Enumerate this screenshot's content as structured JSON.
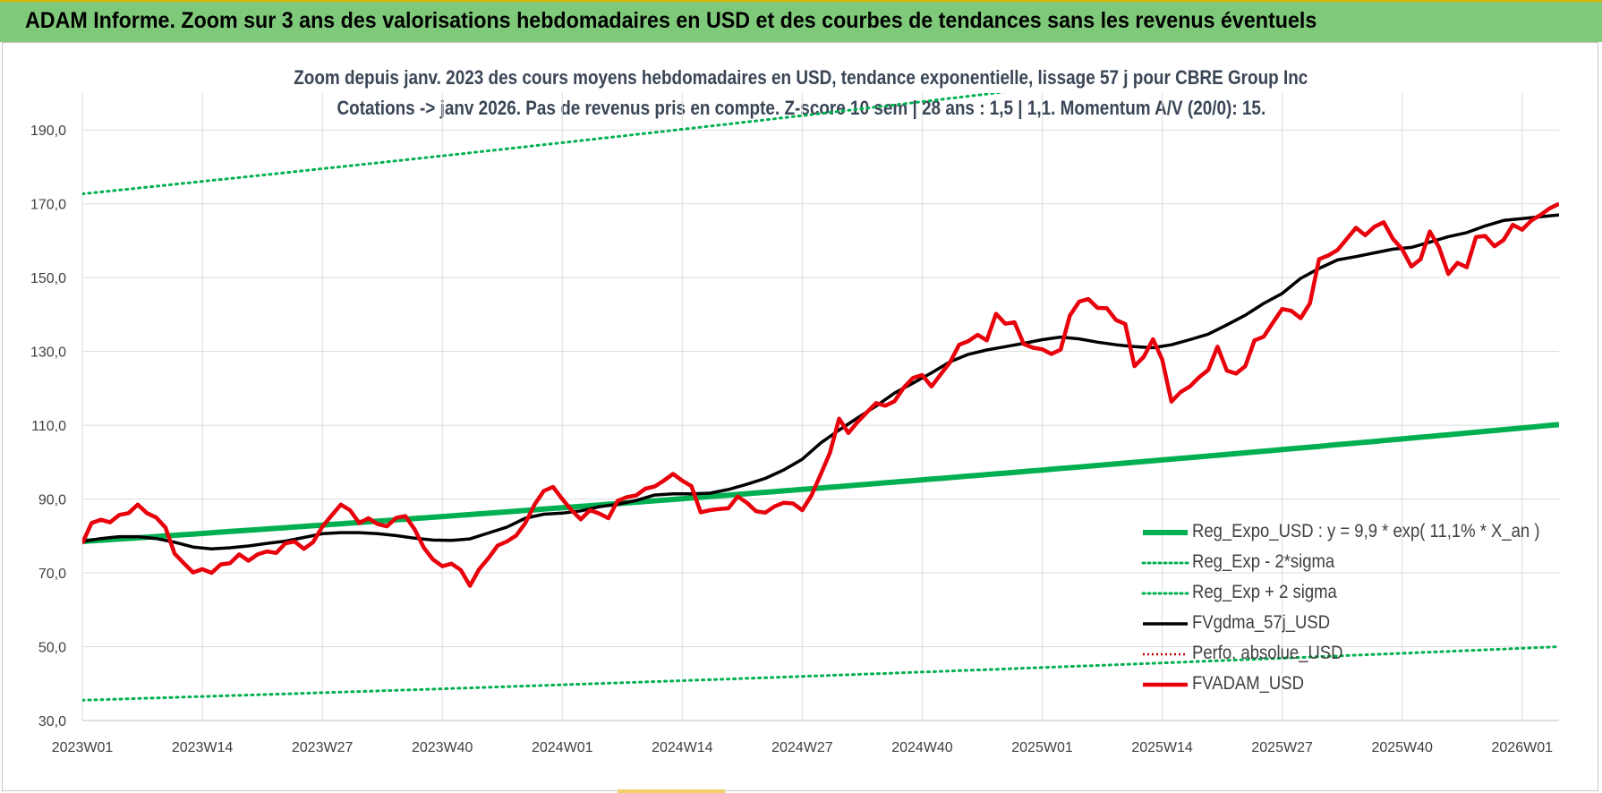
{
  "header": {
    "title": "ADAM Informe. Zoom sur 3 ans des valorisations hebdomadaires en USD et des courbes de tendances sans les revenus éventuels"
  },
  "chart_data": {
    "type": "line",
    "title": "Zoom depuis janv. 2023 des cours moyens hebdomadaires en USD, tendance exponentielle, lissage 57 j pour CBRE Group Inc",
    "subtitle": "Cotations -> janv 2026. Pas de revenus pris en compte. Z-score 10 sem | 28 ans : 1,5 | 1,1. Momentum A/V (20/0): 15.",
    "xlabel": "",
    "ylabel": "",
    "ylim": [
      30,
      200
    ],
    "yticks": [
      "30,0",
      "50,0",
      "70,0",
      "90,0",
      "110,0",
      "130,0",
      "150,0",
      "170,0",
      "190,0"
    ],
    "xlim": [
      0,
      160
    ],
    "xticks": [
      {
        "label": "2023W01",
        "x": 0
      },
      {
        "label": "2023W14",
        "x": 13
      },
      {
        "label": "2023W27",
        "x": 26
      },
      {
        "label": "2023W40",
        "x": 39
      },
      {
        "label": "2024W01",
        "x": 52
      },
      {
        "label": "2024W14",
        "x": 65
      },
      {
        "label": "2024W27",
        "x": 78
      },
      {
        "label": "2024W40",
        "x": 91
      },
      {
        "label": "2025W01",
        "x": 104
      },
      {
        "label": "2025W14",
        "x": 117
      },
      {
        "label": "2025W27",
        "x": 130
      },
      {
        "label": "2025W40",
        "x": 143
      },
      {
        "label": "2026W01",
        "x": 156
      }
    ],
    "grid": true,
    "legend_position": "bottom-right",
    "series": [
      {
        "name": "Reg_Expo_USD : y = 9,9 * exp( 11,1% *  X_an )",
        "style": "solid-thick",
        "color": "#00b050",
        "x": [
          0,
          160
        ],
        "values": [
          78.5,
          110.2
        ],
        "curve": "exponential"
      },
      {
        "name": "Reg_Exp - 2*sigma",
        "style": "dotted",
        "color": "#00b050",
        "x": [
          0,
          160
        ],
        "values": [
          35.5,
          50.0
        ],
        "curve": "exponential"
      },
      {
        "name": "Reg_Exp + 2 sigma",
        "style": "dotted",
        "color": "#00b050",
        "x": [
          0,
          160
        ],
        "values": [
          172.7,
          219.0
        ],
        "curve": "exponential"
      },
      {
        "name": "FVgdma_57j_USD",
        "style": "solid",
        "color": "#000000",
        "x": [
          0,
          2,
          4,
          6,
          8,
          10,
          12,
          14,
          16,
          18,
          20,
          22,
          24,
          26,
          28,
          30,
          32,
          34,
          36,
          38,
          40,
          42,
          44,
          46,
          48,
          50,
          52,
          54,
          56,
          58,
          60,
          62,
          64,
          66,
          68,
          70,
          72,
          74,
          76,
          78,
          80,
          82,
          84,
          86,
          88,
          90,
          92,
          94,
          96,
          98,
          100,
          102,
          104,
          106,
          108,
          110,
          112,
          114,
          116,
          118,
          120,
          122,
          124,
          126,
          128,
          130,
          132,
          134,
          136,
          138,
          140,
          142,
          144,
          146,
          148,
          150,
          152,
          154,
          156,
          158,
          160
        ],
        "values": [
          78.5,
          79.3,
          79.8,
          79.8,
          79.3,
          78.3,
          77.0,
          76.5,
          76.8,
          77.3,
          78.0,
          78.6,
          79.6,
          80.6,
          80.9,
          80.9,
          80.6,
          80.1,
          79.4,
          78.9,
          78.8,
          79.2,
          80.8,
          82.4,
          84.8,
          85.9,
          86.2,
          86.8,
          87.9,
          88.6,
          89.6,
          91.1,
          91.4,
          91.4,
          91.6,
          92.6,
          94.0,
          95.6,
          97.9,
          100.8,
          105.2,
          108.7,
          112.0,
          115.2,
          118.7,
          121.4,
          124.2,
          127.2,
          129.2,
          130.4,
          131.3,
          132.2,
          133.2,
          133.9,
          133.4,
          132.5,
          131.8,
          131.3,
          131.0,
          131.8,
          133.2,
          134.7,
          137.2,
          139.8,
          143.0,
          145.7,
          149.8,
          152.5,
          154.8,
          155.7,
          156.7,
          157.7,
          158.2,
          159.6,
          161.1,
          162.2,
          164.0,
          165.5,
          166.0,
          166.5,
          167.0
        ]
      },
      {
        "name": "Perfo. absolue_USD",
        "style": "dotted",
        "color": "#c00000",
        "x": [],
        "values": []
      },
      {
        "name": "FVADAM_USD",
        "style": "solid-thick",
        "color": "#e8000b",
        "x": [
          0,
          1,
          2,
          3,
          4,
          5,
          6,
          7,
          8,
          9,
          10,
          11,
          12,
          13,
          14,
          15,
          16,
          17,
          18,
          19,
          20,
          21,
          22,
          23,
          24,
          25,
          26,
          27,
          28,
          29,
          30,
          31,
          32,
          33,
          34,
          35,
          36,
          37,
          38,
          39,
          40,
          41,
          42,
          43,
          44,
          45,
          46,
          47,
          48,
          49,
          50,
          51,
          52,
          53,
          54,
          55,
          56,
          57,
          58,
          59,
          60,
          61,
          62,
          63,
          64,
          65,
          66,
          67,
          68,
          69,
          70,
          71,
          72,
          73,
          74,
          75,
          76,
          77,
          78,
          79,
          80,
          81,
          82,
          83,
          84,
          85,
          86,
          87,
          88,
          89,
          90,
          91,
          92,
          93,
          94,
          95,
          96,
          97,
          98,
          99,
          100,
          101,
          102,
          103,
          104,
          105,
          106,
          107,
          108,
          109,
          110,
          111,
          112,
          113,
          114,
          115,
          116,
          117,
          118,
          119,
          120,
          121,
          122,
          123,
          124,
          125,
          126,
          127,
          128,
          129,
          130,
          131,
          132,
          133,
          134,
          135,
          136,
          137,
          138,
          139,
          140,
          141,
          142,
          143,
          144,
          145,
          146,
          147,
          148,
          149,
          150,
          151,
          152,
          153,
          154,
          155,
          156,
          157,
          158,
          159,
          160
        ],
        "values": [
          78.0,
          83.5,
          84.4,
          83.7,
          85.7,
          86.2,
          88.5,
          86.2,
          85.0,
          82.3,
          75.2,
          72.6,
          70.1,
          71.0,
          70.0,
          72.3,
          72.6,
          75.0,
          73.3,
          75.0,
          75.8,
          75.4,
          78.0,
          78.5,
          76.5,
          78.3,
          82.5,
          85.5,
          88.5,
          87.0,
          83.5,
          84.8,
          83.2,
          82.6,
          84.9,
          85.4,
          81.8,
          76.8,
          73.6,
          71.8,
          72.5,
          70.8,
          66.5,
          71.0,
          74.0,
          77.4,
          78.5,
          80.1,
          83.5,
          88.5,
          92.2,
          93.3,
          90.0,
          87.0,
          84.5,
          87.0,
          86.1,
          84.8,
          89.5,
          90.5,
          91.0,
          92.8,
          93.4,
          95.0,
          96.8,
          95.0,
          93.5,
          86.4,
          87.0,
          87.3,
          87.5,
          90.7,
          89.0,
          86.7,
          86.3,
          88.0,
          89.0,
          88.8,
          87.0,
          91.0,
          96.7,
          102.5,
          111.8,
          107.9,
          110.9,
          113.5,
          116.0,
          115.3,
          116.5,
          120.2,
          122.8,
          123.6,
          120.5,
          123.8,
          127.0,
          131.8,
          132.8,
          134.5,
          133.0,
          140.2,
          137.5,
          137.9,
          132.0,
          131.0,
          130.6,
          129.3,
          130.5,
          139.7,
          143.5,
          144.2,
          141.8,
          141.7,
          138.5,
          137.4,
          126.0,
          128.5,
          133.3,
          127.8,
          116.4,
          119.0,
          120.5,
          123.0,
          125.0,
          131.3,
          124.8,
          124.0,
          126.0,
          133.0,
          134.0,
          137.8,
          141.5,
          141.0,
          139.0,
          143.0,
          155.0,
          156.0,
          157.5,
          160.5,
          163.5,
          161.5,
          163.8,
          165.0,
          160.5,
          157.7,
          153.0,
          155.0,
          162.5,
          158.2,
          151.0,
          154.0,
          152.8,
          161.0,
          161.3,
          158.5,
          160.2,
          164.3,
          163.0,
          165.5,
          167.0,
          168.8,
          170.0
        ]
      }
    ]
  }
}
